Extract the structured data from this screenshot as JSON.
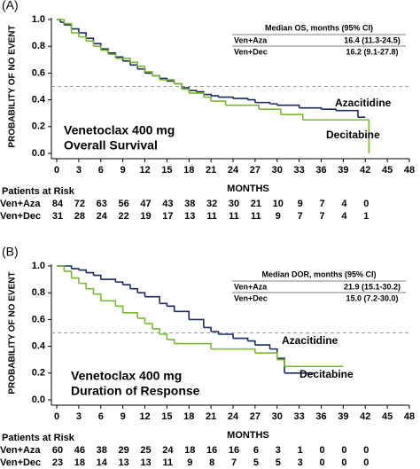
{
  "chart_data": [
    {
      "type": "step",
      "panel_label": "(A)",
      "y_label": "PROBABILITY OF NO EVENT",
      "x_label": "MONTHS",
      "annotation": [
        "Venetoclax 400 mg",
        "Overall Survival"
      ],
      "legend_title": "Median OS, months (95% CI)",
      "xlim": [
        0,
        48
      ],
      "xticks": [
        0,
        3,
        6,
        9,
        12,
        15,
        18,
        21,
        24,
        27,
        30,
        33,
        36,
        39,
        42,
        45,
        48
      ],
      "ylim": [
        0,
        1
      ],
      "yticks": [
        {
          "value": 0,
          "label": "0.0"
        },
        {
          "value": 0.2,
          "label": "0.2"
        },
        {
          "value": 0.4,
          "label": "0.4"
        },
        {
          "value": 0.6,
          "label": "0.6"
        },
        {
          "value": 0.8,
          "label": "0.8"
        },
        {
          "value": 1,
          "label": "1.0"
        }
      ],
      "reference_line": 0.5,
      "at_risk_title": "Patients at Risk",
      "series": [
        {
          "name": "Ven+Aza",
          "curve_label": "Azacitidine",
          "median": "16.4 (11.3-24.5)",
          "color": "#1b2a5e",
          "x": [
            0,
            0.5,
            1,
            2,
            3,
            4,
            5,
            6,
            7,
            8,
            9,
            10,
            11,
            12,
            13,
            14,
            15,
            16,
            17,
            18,
            19,
            20,
            21,
            22,
            24,
            26,
            27,
            29,
            30,
            33,
            36,
            38,
            40,
            41,
            42
          ],
          "values": [
            1.0,
            0.98,
            0.96,
            0.93,
            0.9,
            0.86,
            0.82,
            0.78,
            0.75,
            0.72,
            0.69,
            0.66,
            0.63,
            0.6,
            0.58,
            0.56,
            0.54,
            0.52,
            0.49,
            0.47,
            0.46,
            0.44,
            0.43,
            0.42,
            0.41,
            0.4,
            0.38,
            0.37,
            0.36,
            0.34,
            0.33,
            0.32,
            0.32,
            0.27,
            0.27
          ],
          "at_risk": [
            84,
            72,
            63,
            56,
            47,
            43,
            38,
            32,
            30,
            21,
            10,
            9,
            7,
            4,
            0
          ]
        },
        {
          "name": "Ven+Dec",
          "curve_label": "Decitabine",
          "median": "16.2 (9.1-27.8)",
          "color": "#7cb82f",
          "x": [
            0,
            1,
            2,
            3,
            4,
            5,
            6,
            7,
            8,
            10,
            11,
            12,
            13,
            14,
            16,
            17,
            18,
            20,
            21,
            23,
            27.5,
            30.5,
            33.5,
            42,
            42.5
          ],
          "values": [
            1.0,
            0.97,
            0.9,
            0.87,
            0.84,
            0.8,
            0.77,
            0.74,
            0.71,
            0.68,
            0.65,
            0.61,
            0.58,
            0.55,
            0.52,
            0.48,
            0.45,
            0.42,
            0.39,
            0.36,
            0.33,
            0.29,
            0.25,
            0.25,
            0.0
          ],
          "at_risk": [
            31,
            28,
            24,
            22,
            19,
            17,
            13,
            11,
            11,
            11,
            9,
            7,
            7,
            4,
            1
          ]
        }
      ]
    },
    {
      "type": "step",
      "panel_label": "(B)",
      "y_label": "PROBABILITY OF NO EVENT",
      "x_label": "MONTHS",
      "annotation": [
        "Venetoclax 400 mg",
        "Duration of Response"
      ],
      "legend_title": "Median DOR, months (95% CI)",
      "xlim": [
        0,
        48
      ],
      "xticks": [
        0,
        3,
        6,
        9,
        12,
        15,
        18,
        21,
        24,
        27,
        30,
        33,
        36,
        39,
        42,
        45,
        48
      ],
      "ylim": [
        0,
        1
      ],
      "yticks": [
        {
          "value": 0,
          "label": "0.0"
        },
        {
          "value": 0.2,
          "label": "0.2"
        },
        {
          "value": 0.4,
          "label": "0.4"
        },
        {
          "value": 0.6,
          "label": "0.6"
        },
        {
          "value": 0.8,
          "label": "0.8"
        },
        {
          "value": 1,
          "label": "1.0"
        }
      ],
      "reference_line": 0.5,
      "at_risk_title": "Patients at Risk",
      "series": [
        {
          "name": "Ven+Aza",
          "curve_label": "Azacitidine",
          "median": "21.9 (15.1-30.2)",
          "color": "#1b2a5e",
          "x": [
            0,
            2,
            3,
            4,
            5,
            6,
            8,
            9,
            10,
            11,
            12,
            14,
            15,
            16,
            18,
            20,
            21,
            22,
            24,
            26,
            27,
            29,
            30,
            31,
            35
          ],
          "values": [
            1.0,
            0.98,
            0.97,
            0.95,
            0.93,
            0.9,
            0.88,
            0.86,
            0.83,
            0.8,
            0.77,
            0.72,
            0.7,
            0.66,
            0.6,
            0.54,
            0.51,
            0.49,
            0.46,
            0.44,
            0.41,
            0.38,
            0.31,
            0.2,
            0.2
          ],
          "at_risk": [
            60,
            46,
            38,
            29,
            25,
            24,
            18,
            16,
            16,
            6,
            3,
            1,
            0,
            0,
            0
          ]
        },
        {
          "name": "Ven+Dec",
          "curve_label": "Decitabine",
          "median": "15.0 (7.2-30.0)",
          "color": "#7cb82f",
          "x": [
            0,
            1,
            2,
            3,
            4,
            5,
            6,
            8,
            9,
            11,
            12,
            13,
            14,
            15,
            16,
            20,
            21,
            26,
            27,
            30,
            31,
            39
          ],
          "values": [
            1.0,
            0.96,
            0.91,
            0.87,
            0.83,
            0.79,
            0.74,
            0.7,
            0.65,
            0.61,
            0.57,
            0.53,
            0.49,
            0.45,
            0.42,
            0.42,
            0.38,
            0.38,
            0.35,
            0.3,
            0.25,
            0.25
          ],
          "at_risk": [
            23,
            18,
            14,
            13,
            13,
            11,
            9,
            8,
            7,
            5,
            5,
            3,
            0,
            0,
            0
          ]
        }
      ]
    }
  ]
}
